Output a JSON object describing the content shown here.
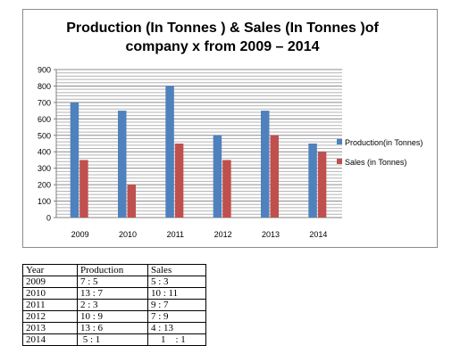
{
  "chart_data": {
    "type": "bar",
    "title": "Production (In Tonnes  ) & Sales (In Tonnes )of company x from 2009 – 2014",
    "title_lines": [
      "Production (In Tonnes  ) & Sales (In Tonnes )of",
      "company x from 2009 – 2014"
    ],
    "categories": [
      "2009",
      "2010",
      "2011",
      "2012",
      "2013",
      "2014"
    ],
    "series": [
      {
        "name": "Production(in Tonnes)",
        "values": [
          700,
          650,
          800,
          500,
          650,
          450
        ],
        "color": "#4f81bd"
      },
      {
        "name": "Sales (in Tonnes)",
        "values": [
          350,
          200,
          450,
          350,
          500,
          400
        ],
        "color": "#c0504d"
      }
    ],
    "ylim": [
      0,
      900
    ],
    "yticks": [
      "0",
      "100",
      "200",
      "300",
      "400",
      "500",
      "600",
      "700",
      "800",
      "900"
    ],
    "grid": true,
    "legend_position": "right"
  },
  "table": {
    "headers": [
      "Year",
      "Production",
      "Sales"
    ],
    "rows": [
      [
        "2009",
        "7 : 5",
        "5 : 3"
      ],
      [
        "2010",
        "13 : 7",
        "10 : 11"
      ],
      [
        "2011",
        "2 : 3",
        "9 : 7"
      ],
      [
        "2012",
        "10 : 9",
        "7 : 9"
      ],
      [
        "2013",
        "13 : 6",
        "4 : 13"
      ],
      [
        "2014",
        " 5 : 1",
        "    1    : 1"
      ]
    ]
  }
}
